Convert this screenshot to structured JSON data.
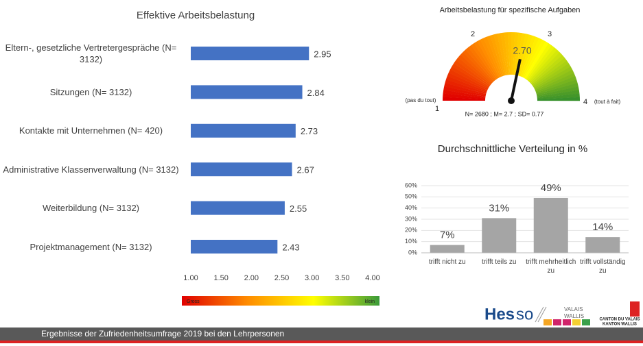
{
  "chart_data": [
    {
      "type": "hbar",
      "title": "Effektive Arbeitsbelastung",
      "categories": [
        "Eltern-, gesetzliche Vertretergespräche (N= 3132)",
        "Sitzungen (N= 3132)",
        "Kontakte mit Unternehmen (N= 420)",
        "Administrative Klassenverwaltung (N= 3132)",
        "Weiterbildung (N= 3132)",
        "Projektmanagement (N= 3132)"
      ],
      "values": [
        2.95,
        2.84,
        2.73,
        2.67,
        2.55,
        2.43
      ],
      "color": "#4472c4",
      "xlim": [
        1,
        4
      ],
      "xticks": [
        {
          "value": 1,
          "label": "1.00"
        },
        {
          "value": 1.5,
          "label": "1.50"
        },
        {
          "value": 2,
          "label": "2.00"
        },
        {
          "value": 2.5,
          "label": "2.50"
        },
        {
          "value": 3,
          "label": "3.00"
        },
        {
          "value": 3.5,
          "label": "3.50"
        },
        {
          "value": 4,
          "label": "4.00"
        }
      ],
      "grid": false,
      "scale_legend": {
        "low": "Gross",
        "high": "klein",
        "colors": [
          "#e00000",
          "#ff8c00",
          "#ffff00",
          "#3a9a3a"
        ]
      }
    },
    {
      "type": "gauge",
      "title": "Arbeitsbelastung für spezifische Aufgaben",
      "value": 2.7,
      "value_labels": "2.70",
      "ylim": [
        1,
        4
      ],
      "yticks": [
        1,
        2,
        3,
        4
      ],
      "band_colors": [
        "#e00000",
        "#ff8c00",
        "#ffff00",
        "#2e8b2e"
      ],
      "annotations": {
        "low": "(pas du tout)",
        "high": "(tout à fait)",
        "note": "N= 2680 ; M= 2.7 ; SD= 0.77"
      }
    },
    {
      "type": "bar",
      "title": "Durchschnittliche Verteilung in %",
      "categories": [
        "trifft nicht zu",
        "trifft teils zu",
        "trifft mehrheitlich zu",
        "trifft vollständig zu"
      ],
      "values": [
        7,
        31,
        49,
        14
      ],
      "value_labels": [
        "7%",
        "31%",
        "49%",
        "14%"
      ],
      "color": "#a5a5a5",
      "ylim": [
        0,
        60
      ],
      "yticks": [
        {
          "value": 0,
          "label": "0%"
        },
        {
          "value": 10,
          "label": "10%"
        },
        {
          "value": 20,
          "label": "20%"
        },
        {
          "value": 30,
          "label": "30%"
        },
        {
          "value": 40,
          "label": "40%"
        },
        {
          "value": 50,
          "label": "50%"
        },
        {
          "value": 60,
          "label": "60%"
        }
      ],
      "grid": true
    }
  ],
  "footer": {
    "text": "Ergebnisse der Zufriedenheitsumfrage 2019 bei den Lehrpersonen"
  },
  "logo": {
    "brand_left": "Hes",
    "brand_right": "so",
    "region": [
      "VALAIS",
      "WALLIS"
    ],
    "canton": [
      "CANTON DU VALAIS",
      "KANTON WALLIS"
    ]
  }
}
